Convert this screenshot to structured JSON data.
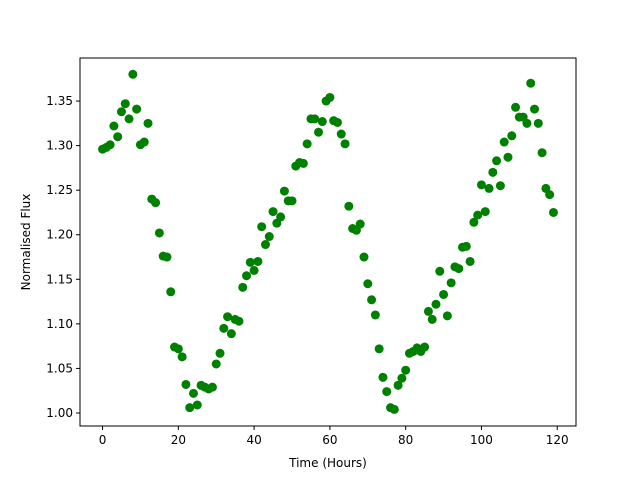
{
  "chart_data": {
    "type": "scatter",
    "x_label": "Time (Hours)",
    "y_label": "Normalised Flux",
    "x": [
      0,
      1,
      2,
      3,
      4,
      5,
      6,
      7,
      8,
      9,
      10,
      11,
      12,
      13,
      14,
      15,
      16,
      17,
      18,
      19,
      20,
      21,
      22,
      23,
      24,
      25,
      26,
      27,
      28,
      29,
      30,
      31,
      32,
      33,
      34,
      35,
      36,
      37,
      38,
      39,
      40,
      41,
      42,
      43,
      44,
      45,
      46,
      47,
      48,
      49,
      50,
      51,
      52,
      53,
      54,
      55,
      56,
      57,
      58,
      59,
      60,
      61,
      62,
      63,
      64,
      65,
      66,
      67,
      68,
      69,
      70,
      71,
      72,
      73,
      74,
      75,
      76,
      77,
      78,
      79,
      80,
      81,
      82,
      83,
      84,
      85,
      86,
      87,
      88,
      89,
      90,
      91,
      92,
      93,
      94,
      95,
      96,
      97,
      98,
      99,
      100,
      101,
      102,
      103,
      104,
      105,
      106,
      107,
      108,
      109,
      110,
      111,
      112,
      113,
      114,
      115,
      116,
      117,
      118,
      119
    ],
    "series": [
      {
        "color": "#008000",
        "values": [
          1.296,
          1.298,
          1.301,
          1.322,
          1.31,
          1.338,
          1.347,
          1.33,
          1.38,
          1.341,
          1.301,
          1.304,
          1.325,
          1.24,
          1.236,
          1.202,
          1.176,
          1.175,
          1.136,
          1.074,
          1.072,
          1.063,
          1.032,
          1.006,
          1.022,
          1.009,
          1.031,
          1.029,
          1.027,
          1.029,
          1.055,
          1.067,
          1.095,
          1.108,
          1.089,
          1.105,
          1.103,
          1.141,
          1.154,
          1.169,
          1.16,
          1.17,
          1.209,
          1.189,
          1.198,
          1.226,
          1.213,
          1.22,
          1.249,
          1.238,
          1.238,
          1.277,
          1.281,
          1.28,
          1.302,
          1.33,
          1.33,
          1.315,
          1.327,
          1.35,
          1.354,
          1.328,
          1.326,
          1.313,
          1.302,
          1.232,
          1.207,
          1.205,
          1.212,
          1.175,
          1.145,
          1.127,
          1.11,
          1.072,
          1.04,
          1.024,
          1.006,
          1.004,
          1.031,
          1.039,
          1.048,
          1.067,
          1.069,
          1.073,
          1.069,
          1.074,
          1.114,
          1.105,
          1.122,
          1.159,
          1.133,
          1.109,
          1.146,
          1.164,
          1.162,
          1.186,
          1.187,
          1.17,
          1.214,
          1.222,
          1.256,
          1.226,
          1.252,
          1.27,
          1.283,
          1.255,
          1.304,
          1.287,
          1.311,
          1.343,
          1.332,
          1.332,
          1.325,
          1.37,
          1.341,
          1.325,
          1.292,
          1.252,
          1.245,
          1.225
        ]
      }
    ],
    "xlim": [
      -5.95,
      124.95
    ],
    "xticks": [
      0,
      20,
      40,
      60,
      80,
      100,
      120
    ],
    "ylim": [
      0.9854,
      1.3983
    ],
    "yticks": [
      {
        "value": 1,
        "label": "1.00"
      },
      1.05,
      {
        "value": 1.1,
        "label": "1.10"
      },
      1.15,
      {
        "value": 1.2,
        "label": "1.20"
      },
      1.25,
      {
        "value": 1.3,
        "label": "1.30"
      },
      1.35
    ],
    "grid": false
  }
}
